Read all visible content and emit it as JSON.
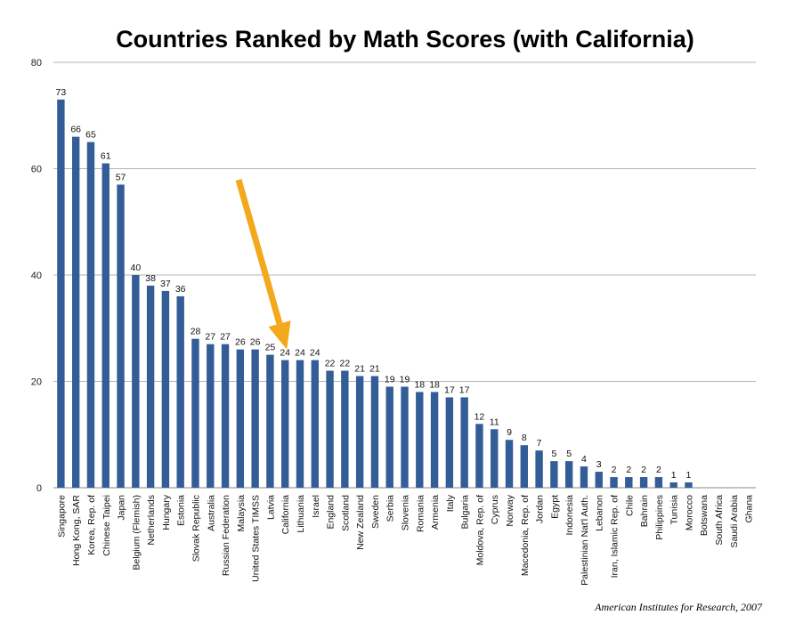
{
  "chart_data": {
    "type": "bar",
    "title": "Countries Ranked by Math Scores (with California)",
    "source": "American Institutes for Research, 2007",
    "ylim": [
      0,
      80
    ],
    "yticks": [
      0,
      20,
      40,
      60,
      80
    ],
    "grid": true,
    "bar_color": "#335d97",
    "arrow_color": "#f4a81c",
    "highlight_category": "California",
    "categories": [
      "Singapore",
      "Hong Kong, SAR",
      "Korea, Rep. of",
      "Chinese Taipei",
      "Japan",
      "Belgium (Flemish)",
      "Netherlands",
      "Hungary",
      "Estonia",
      "Slovak Republic",
      "Australia",
      "Russian Federation",
      "Malaysia",
      "United States TIMSS",
      "Latvia",
      "California",
      "Lithuania",
      "Israel",
      "England",
      "Scotland",
      "New Zealand",
      "Sweden",
      "Serbia",
      "Slovenia",
      "Romania",
      "Armenia",
      "Italy",
      "Bulgaria",
      "Moldova, Rep. of",
      "Cyprus",
      "Norway",
      "Macedonia, Rep. of",
      "Jordan",
      "Egypt",
      "Indonesia",
      "Palestinian Nat'l Auth.",
      "Lebanon",
      "Iran, Islamic Rep. of",
      "Chile",
      "Bahrain",
      "Philippines",
      "Tunisia",
      "Morocco",
      "Botswana",
      "South Africa",
      "Saudi Arabia",
      "Ghana"
    ],
    "values": [
      73,
      66,
      65,
      61,
      57,
      40,
      38,
      37,
      36,
      28,
      27,
      27,
      26,
      26,
      25,
      24,
      24,
      24,
      22,
      22,
      21,
      21,
      19,
      19,
      18,
      18,
      17,
      17,
      12,
      11,
      9,
      8,
      7,
      5,
      5,
      4,
      3,
      2,
      2,
      2,
      2,
      1,
      1,
      0,
      0,
      0,
      0
    ],
    "value_labels": [
      "73",
      "66",
      "65",
      "61",
      "57",
      "40",
      "38",
      "37",
      "36",
      "28",
      "27",
      "27",
      "26",
      "26",
      "25",
      "24",
      "24",
      "24",
      "22",
      "22",
      "21",
      "21",
      "19",
      "19",
      "18",
      "18",
      "17",
      "17",
      "12",
      "11",
      "9",
      "8",
      "7",
      "5",
      "5",
      "4",
      "3",
      "2",
      "2",
      "2",
      "2",
      "1",
      "1",
      "",
      "",
      "",
      ""
    ]
  }
}
